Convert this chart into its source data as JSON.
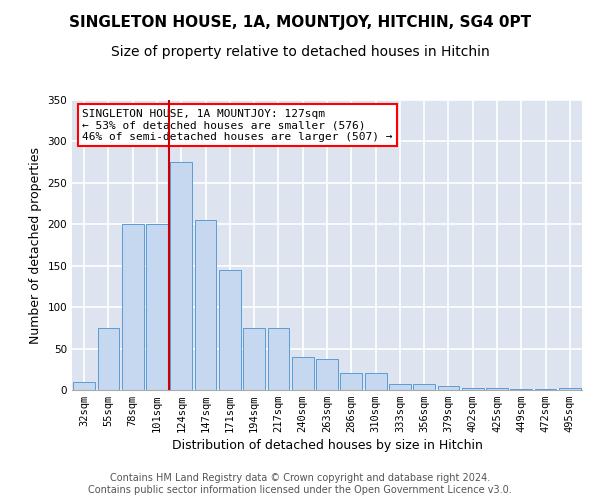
{
  "title": "SINGLETON HOUSE, 1A, MOUNTJOY, HITCHIN, SG4 0PT",
  "subtitle": "Size of property relative to detached houses in Hitchin",
  "xlabel": "Distribution of detached houses by size in Hitchin",
  "ylabel": "Number of detached properties",
  "bar_labels": [
    "32sqm",
    "55sqm",
    "78sqm",
    "101sqm",
    "124sqm",
    "147sqm",
    "171sqm",
    "194sqm",
    "217sqm",
    "240sqm",
    "263sqm",
    "286sqm",
    "310sqm",
    "333sqm",
    "356sqm",
    "379sqm",
    "402sqm",
    "425sqm",
    "449sqm",
    "472sqm",
    "495sqm"
  ],
  "bar_values": [
    10,
    75,
    200,
    200,
    275,
    205,
    145,
    75,
    75,
    40,
    38,
    20,
    20,
    7,
    7,
    5,
    3,
    2,
    1,
    1,
    2
  ],
  "bar_color": "#c5d8ef",
  "bar_edge_color": "#5b9bd5",
  "background_color": "#dde4f0",
  "grid_color": "#ffffff",
  "ylim": [
    0,
    350
  ],
  "yticks": [
    0,
    50,
    100,
    150,
    200,
    250,
    300,
    350
  ],
  "vline_index": 4,
  "vline_color": "#cc0000",
  "annotation_text": "SINGLETON HOUSE, 1A MOUNTJOY: 127sqm\n← 53% of detached houses are smaller (576)\n46% of semi-detached houses are larger (507) →",
  "footer_line1": "Contains HM Land Registry data © Crown copyright and database right 2024.",
  "footer_line2": "Contains public sector information licensed under the Open Government Licence v3.0.",
  "title_fontsize": 11,
  "subtitle_fontsize": 10,
  "annotation_fontsize": 8,
  "ylabel_fontsize": 9,
  "xlabel_fontsize": 9,
  "tick_fontsize": 7.5,
  "footer_fontsize": 7
}
